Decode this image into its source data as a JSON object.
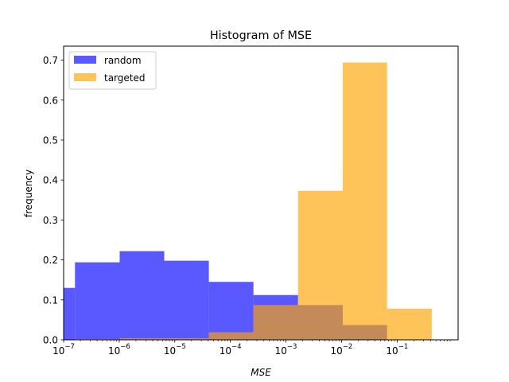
{
  "chart_data": {
    "type": "bar",
    "title": "Histogram of MSE",
    "xlabel": "MSE",
    "ylabel": "frequency",
    "x_scale": "log",
    "xlim": [
      1e-07,
      1.25
    ],
    "ylim": [
      0,
      0.735
    ],
    "x_ticks": [
      {
        "value": 1e-07,
        "label": "10",
        "exp": "−7"
      },
      {
        "value": 1e-06,
        "label": "10",
        "exp": "−6"
      },
      {
        "value": 1e-05,
        "label": "10",
        "exp": "−5"
      },
      {
        "value": 0.0001,
        "label": "10",
        "exp": "−4"
      },
      {
        "value": 0.001,
        "label": "10",
        "exp": "−3"
      },
      {
        "value": 0.01,
        "label": "10",
        "exp": "−2"
      },
      {
        "value": 0.1,
        "label": "10",
        "exp": "−1"
      }
    ],
    "y_ticks": [
      {
        "value": 0.0,
        "label": "0.0"
      },
      {
        "value": 0.1,
        "label": "0.1"
      },
      {
        "value": 0.2,
        "label": "0.2"
      },
      {
        "value": 0.3,
        "label": "0.3"
      },
      {
        "value": 0.4,
        "label": "0.4"
      },
      {
        "value": 0.5,
        "label": "0.5"
      },
      {
        "value": 0.6,
        "label": "0.6"
      },
      {
        "value": 0.7,
        "label": "0.7"
      }
    ],
    "legend_position": "top-left",
    "grid": false,
    "series": [
      {
        "name": "random",
        "color": "#0000ff",
        "opacity": 0.65,
        "bins": [
          {
            "x0": 1e-07,
            "x1": 1.6e-07,
            "value": 0.13
          },
          {
            "x0": 1.6e-07,
            "x1": 1.02e-06,
            "value": 0.194
          },
          {
            "x0": 1.02e-06,
            "x1": 6.46e-06,
            "value": 0.222
          },
          {
            "x0": 6.46e-06,
            "x1": 4.1e-05,
            "value": 0.198
          },
          {
            "x0": 4.1e-05,
            "x1": 0.00026,
            "value": 0.145
          },
          {
            "x0": 0.00026,
            "x1": 0.00165,
            "value": 0.112
          },
          {
            "x0": 0.00165,
            "x1": 0.0105,
            "value": 0.087
          },
          {
            "x0": 0.0105,
            "x1": 0.066,
            "value": 0.037
          }
        ]
      },
      {
        "name": "targeted",
        "color": "#ffa500",
        "opacity": 0.65,
        "bins": [
          {
            "x0": 1.6e-07,
            "x1": 1.02e-06,
            "value": 0.002
          },
          {
            "x0": 1.02e-06,
            "x1": 6.46e-06,
            "value": 0.004
          },
          {
            "x0": 6.46e-06,
            "x1": 4.1e-05,
            "value": 0.004
          },
          {
            "x0": 4.1e-05,
            "x1": 0.00026,
            "value": 0.019
          },
          {
            "x0": 0.00026,
            "x1": 0.00165,
            "value": 0.087
          },
          {
            "x0": 0.00165,
            "x1": 0.0105,
            "value": 0.373
          },
          {
            "x0": 0.0105,
            "x1": 0.066,
            "value": 0.694
          },
          {
            "x0": 0.066,
            "x1": 0.42,
            "value": 0.078
          }
        ]
      }
    ]
  }
}
